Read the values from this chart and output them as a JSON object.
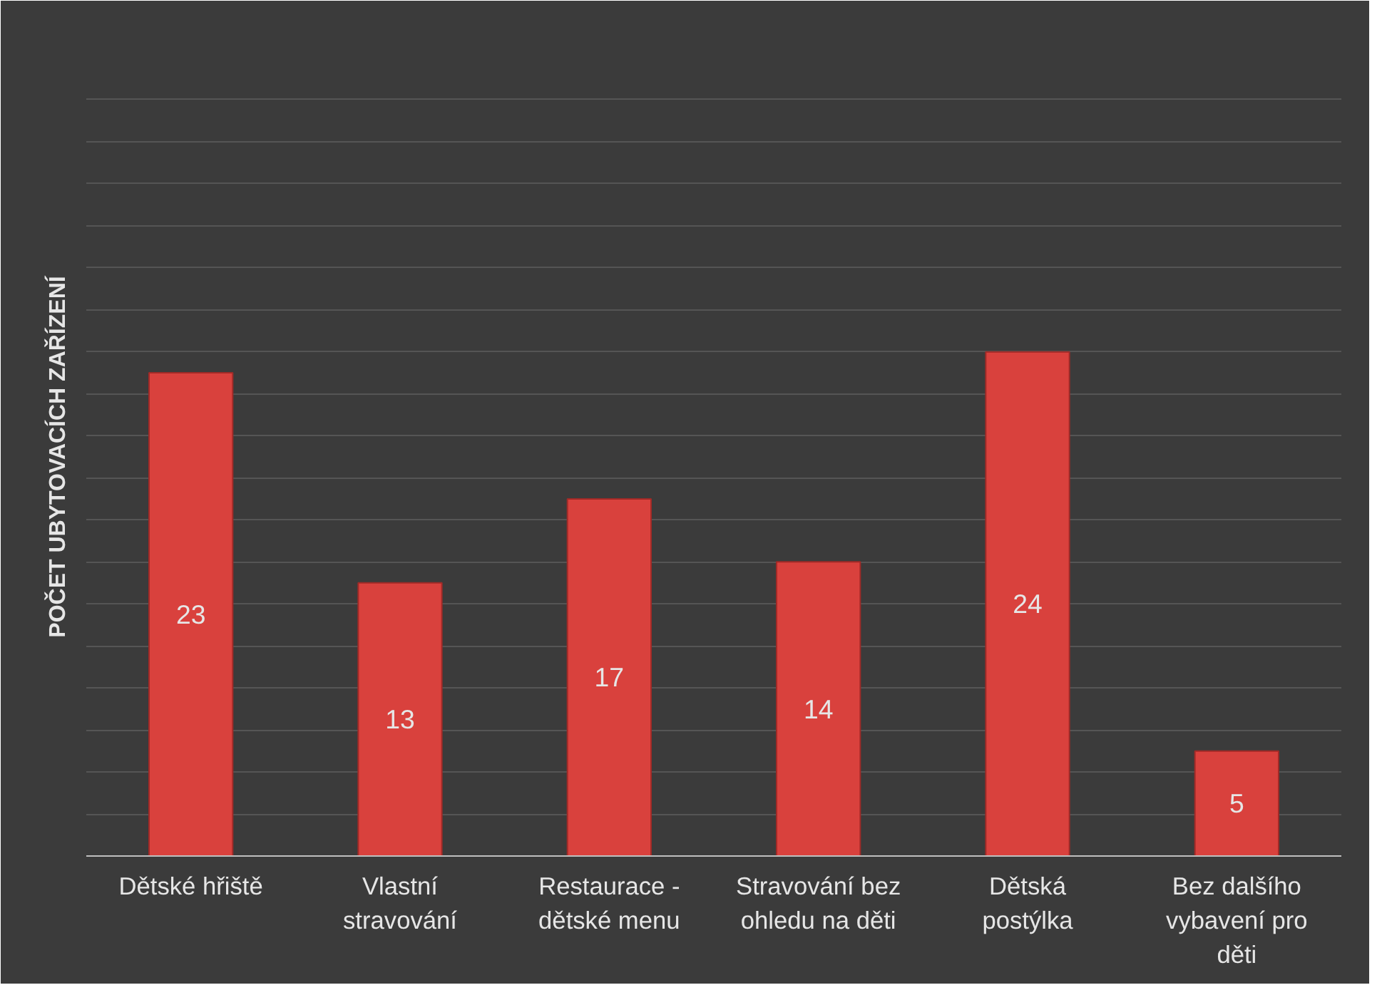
{
  "chart_data": {
    "type": "bar",
    "ylabel": "POČET UBYTOVACÍCH ZAŘÍZENÍ",
    "categories": [
      "Dětské hřiště",
      "Vlastní stravování",
      "Restaurace - dětské menu",
      "Stravování bez ohledu na děti",
      "Dětská postýlka",
      "Bez dalšího vybavení pro děti"
    ],
    "values": [
      23,
      13,
      17,
      14,
      24,
      5
    ],
    "color": "#d9413d",
    "ylim": [
      0,
      38
    ],
    "yticks": [
      {
        "value": 2,
        "label": null
      },
      {
        "value": 4,
        "label": null
      },
      {
        "value": 6,
        "label": null
      },
      {
        "value": 8,
        "label": null
      },
      {
        "value": 10,
        "label": null
      },
      {
        "value": 12,
        "label": null
      },
      {
        "value": 14,
        "label": null
      },
      {
        "value": 16,
        "label": null
      },
      {
        "value": 18,
        "label": null
      },
      {
        "value": 20,
        "label": null
      },
      {
        "value": 22,
        "label": null
      },
      {
        "value": 24,
        "label": null
      },
      {
        "value": 26,
        "label": null
      },
      {
        "value": 28,
        "label": null
      },
      {
        "value": 30,
        "label": null
      },
      {
        "value": 32,
        "label": null
      },
      {
        "value": 34,
        "label": null
      },
      {
        "value": 36,
        "label": null
      },
      {
        "value": 38,
        "label": null
      }
    ],
    "grid": "y",
    "tick_labels": "x",
    "data_labels": true
  }
}
